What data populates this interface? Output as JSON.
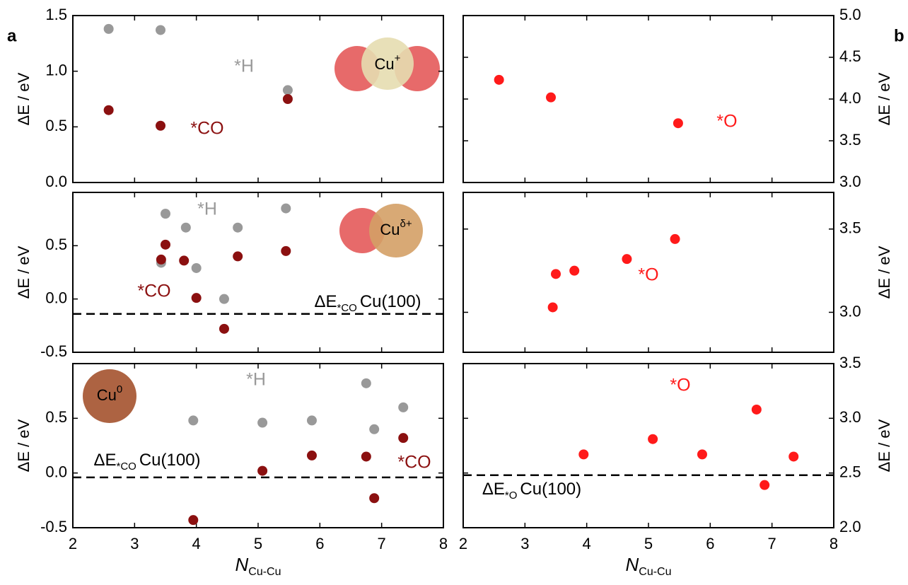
{
  "chart_data": [
    {
      "type": "scatter",
      "panel_label": "a",
      "ylabel": "ΔE / eV",
      "xlim": [
        2,
        8
      ],
      "xticks": [
        2,
        3,
        4,
        5,
        6,
        7,
        8
      ],
      "ylim": [
        0,
        1.5
      ],
      "yticks": [
        {
          "value": 0,
          "label": "0.0"
        },
        0.5,
        {
          "value": 1,
          "label": "1.0"
        },
        1.5
      ],
      "inset_label": {
        "text": "Cu",
        "sup": "+"
      },
      "series": [
        {
          "name": "*H",
          "color": "#999999",
          "x": [
            2.58,
            3.42,
            5.48
          ],
          "values": [
            1.38,
            1.37,
            0.83
          ]
        },
        {
          "name": "*CO",
          "color": "#8b1010",
          "x": [
            2.58,
            3.42,
            5.48
          ],
          "values": [
            0.65,
            0.51,
            0.75
          ]
        }
      ]
    },
    {
      "type": "scatter",
      "panel_label": "b",
      "ylabel": "ΔE / eV",
      "xlim": [
        2,
        8
      ],
      "xticks": [
        2,
        3,
        4,
        5,
        6,
        7,
        8
      ],
      "ylim": [
        3,
        5
      ],
      "yticks": [
        {
          "value": 3,
          "label": "3.0"
        },
        3.5,
        {
          "value": 4,
          "label": "4.0"
        },
        4.5,
        {
          "value": 5,
          "label": "5.0"
        }
      ],
      "series": [
        {
          "name": "*O",
          "color": "#ff1a1a",
          "x": [
            2.58,
            3.42,
            5.48
          ],
          "values": [
            4.23,
            4.02,
            3.71
          ]
        }
      ]
    },
    {
      "type": "scatter",
      "ylabel": "ΔE / eV",
      "xlim": [
        2,
        8
      ],
      "xticks": [
        2,
        3,
        4,
        5,
        6,
        7,
        8
      ],
      "ylim": [
        -0.5,
        1.0
      ],
      "yticks": [
        -0.5,
        {
          "value": 0,
          "label": "0.0"
        },
        0.5
      ],
      "inset_label": {
        "text": "Cu",
        "sup": "δ+"
      },
      "reference_line": {
        "value": -0.14,
        "label": {
          "pre": "ΔE",
          "sub": "*CO",
          "post": "Cu(100)"
        }
      },
      "series": [
        {
          "name": "*H",
          "color": "#999999",
          "x": [
            3.43,
            3.5,
            3.83,
            4.0,
            4.45,
            4.67,
            5.45
          ],
          "values": [
            0.34,
            0.8,
            0.67,
            0.29,
            0.0,
            0.67,
            0.85
          ]
        },
        {
          "name": "*CO",
          "color": "#8b1010",
          "x": [
            3.43,
            3.5,
            3.8,
            4.0,
            4.45,
            4.67,
            5.45
          ],
          "values": [
            0.37,
            0.51,
            0.36,
            0.01,
            -0.28,
            0.4,
            0.45
          ]
        }
      ]
    },
    {
      "type": "scatter",
      "ylabel": "ΔE / eV",
      "xlim": [
        2,
        8
      ],
      "xticks": [
        2,
        3,
        4,
        5,
        6,
        7,
        8
      ],
      "ylim": [
        2.76,
        3.72
      ],
      "yticks": [
        {
          "value": 3,
          "label": "3.0"
        },
        3.5
      ],
      "series": [
        {
          "name": "*O",
          "color": "#ff1a1a",
          "x": [
            3.45,
            3.5,
            3.8,
            4.65,
            5.43
          ],
          "values": [
            3.03,
            3.23,
            3.25,
            3.32,
            3.44
          ]
        }
      ]
    },
    {
      "type": "scatter",
      "ylabel": "ΔE / eV",
      "xlabel": {
        "main": "N",
        "sub": "Cu-Cu"
      },
      "xlim": [
        2,
        8
      ],
      "xticks": [
        2,
        3,
        4,
        5,
        6,
        7,
        8
      ],
      "ylim": [
        -0.5,
        1.0
      ],
      "yticks": [
        -0.5,
        {
          "value": 0,
          "label": "0.0"
        },
        0.5
      ],
      "inset_label": {
        "text": "Cu",
        "sup": "0"
      },
      "reference_line": {
        "value": -0.04,
        "label": {
          "pre": "ΔE",
          "sub": "*CO",
          "post": "Cu(100)"
        }
      },
      "series": [
        {
          "name": "*H",
          "color": "#999999",
          "x": [
            3.95,
            5.07,
            5.87,
            6.75,
            6.88,
            7.35
          ],
          "values": [
            0.48,
            0.46,
            0.48,
            0.82,
            0.4,
            0.6
          ]
        },
        {
          "name": "*CO",
          "color": "#8b1010",
          "x": [
            3.95,
            5.07,
            5.87,
            6.75,
            6.88,
            7.35
          ],
          "values": [
            -0.43,
            0.02,
            0.16,
            0.15,
            -0.23,
            0.32
          ]
        }
      ]
    },
    {
      "type": "scatter",
      "ylabel": "ΔE / eV",
      "xlabel": {
        "main": "N",
        "sub": "Cu-Cu"
      },
      "xlim": [
        2,
        8
      ],
      "xticks": [
        2,
        3,
        4,
        5,
        6,
        7,
        8
      ],
      "ylim": [
        2.0,
        3.5
      ],
      "yticks": [
        {
          "value": 2,
          "label": "2.0"
        },
        2.5,
        {
          "value": 3,
          "label": "3.0"
        },
        3.5
      ],
      "reference_line": {
        "value": 2.48,
        "label": {
          "pre": "ΔE",
          "sub": "*O",
          "post": "Cu(100)"
        }
      },
      "series": [
        {
          "name": "*O",
          "color": "#ff1a1a",
          "x": [
            3.95,
            5.07,
            5.87,
            6.75,
            6.88,
            7.35
          ],
          "values": [
            2.67,
            2.81,
            2.67,
            3.08,
            2.39,
            2.65
          ]
        }
      ]
    }
  ]
}
